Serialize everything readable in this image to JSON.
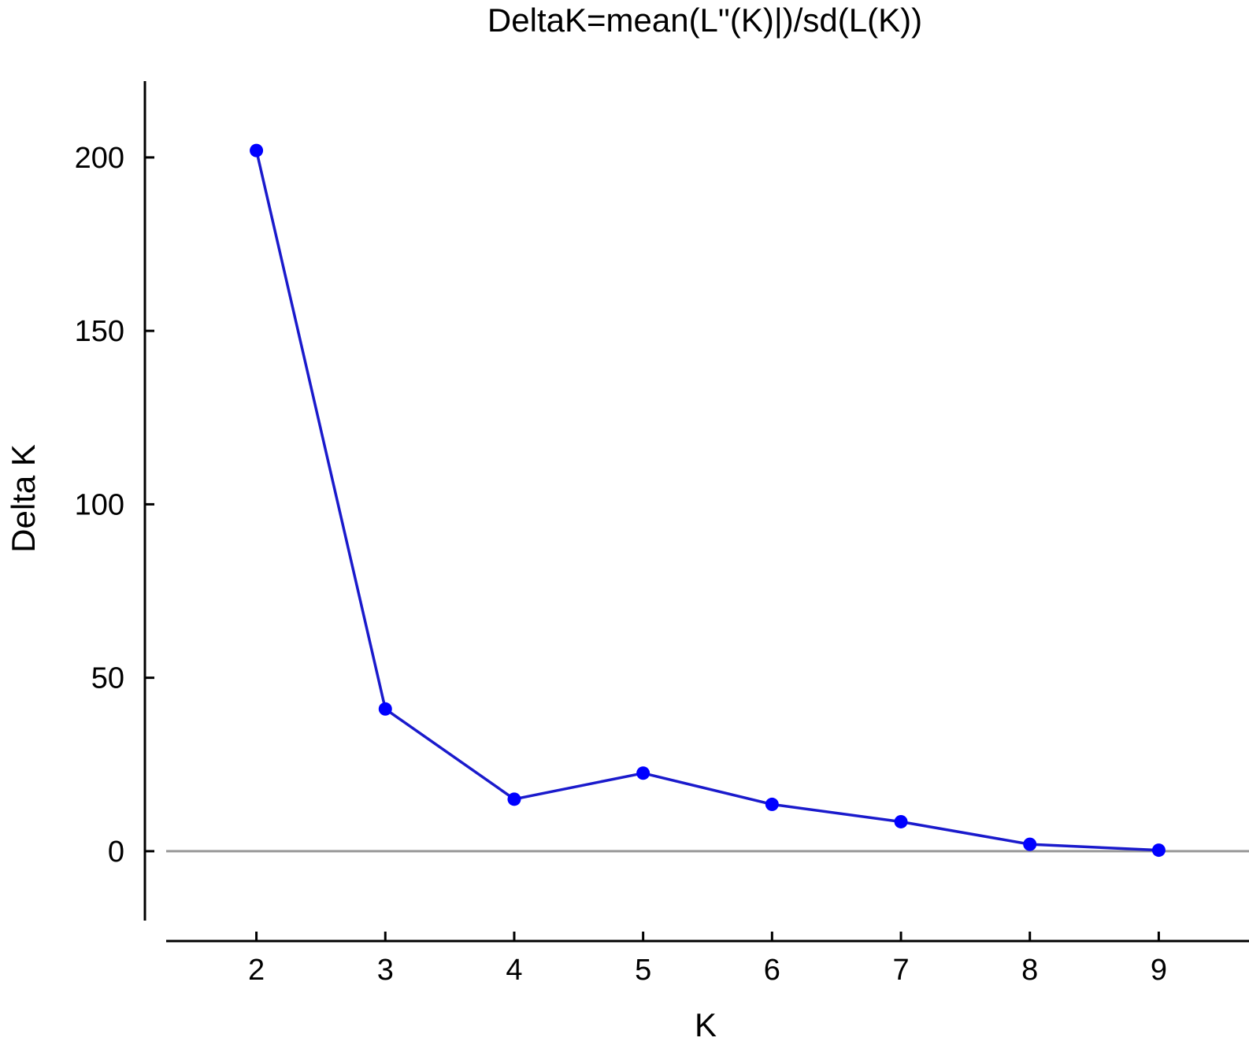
{
  "chart_data": {
    "type": "line",
    "title": "DeltaK=mean(L\"(K)|)/sd(L(K))",
    "xlabel": "K",
    "ylabel": "Delta K",
    "x": [
      2,
      3,
      4,
      5,
      6,
      7,
      8,
      9
    ],
    "xticks": [
      "2",
      "3",
      "4",
      "5",
      "6",
      "7",
      "8",
      "9"
    ],
    "xlim": [
      1.3,
      9.7
    ],
    "yticks": [
      "0",
      "50",
      "100",
      "150",
      "200"
    ],
    "ylim": [
      -20,
      222
    ],
    "series": [
      {
        "values": [
          202,
          41,
          15,
          22.5,
          13.5,
          8.5,
          2,
          0.3
        ],
        "color": "#0000ff",
        "line_color": "#1a1acc"
      }
    ],
    "reference_line": {
      "y": 0,
      "color": "#999999"
    },
    "grid": false,
    "legend": "none"
  }
}
